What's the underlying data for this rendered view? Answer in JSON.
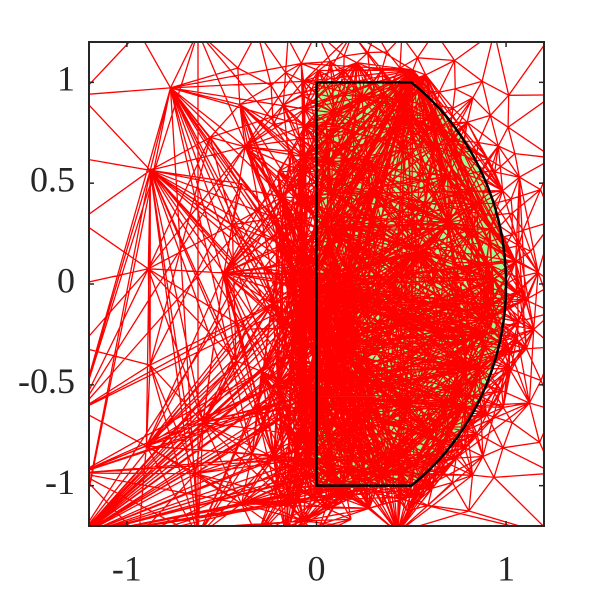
{
  "chart_data": {
    "type": "mesh",
    "xlim": [
      -1.2,
      1.2
    ],
    "ylim": [
      -1.2,
      1.2
    ],
    "xticks": [
      -1,
      0,
      1
    ],
    "yticks": [
      -1,
      -0.5,
      0,
      0.5,
      1
    ],
    "mesh_color": "#ff0000",
    "region": {
      "x": [
        0,
        0.5,
        0.5,
        0
      ],
      "y": [
        -1,
        -1,
        1,
        1
      ],
      "arc_center": [
        -0.25,
        0
      ],
      "color": "#99ff99"
    }
  }
}
